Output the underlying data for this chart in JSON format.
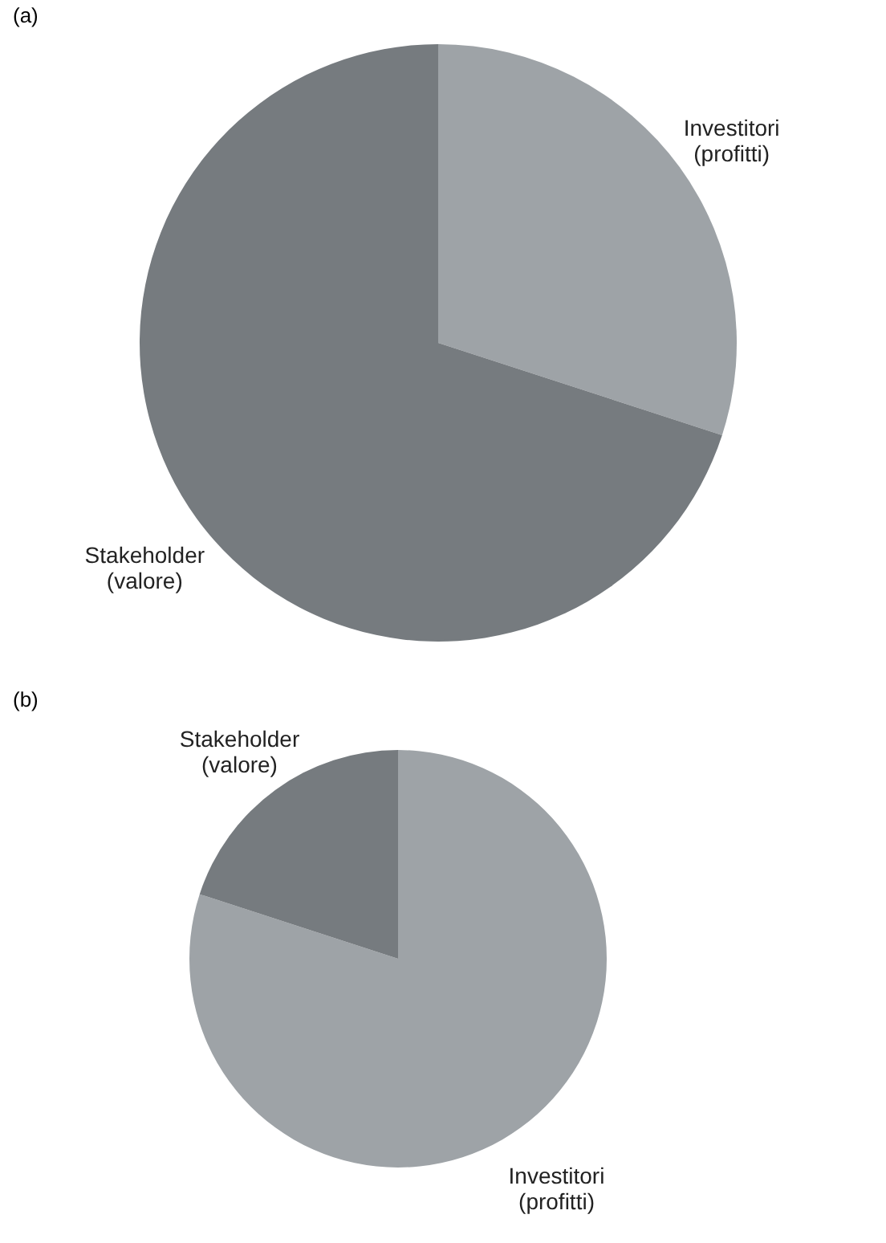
{
  "chart_data": [
    {
      "type": "pie",
      "title": "(a)",
      "categories": [
        "Investitori (profitti)",
        "Stakeholder (valore)"
      ],
      "values": [
        30,
        70
      ],
      "colors": [
        "#9ea3a7",
        "#767b7f"
      ]
    },
    {
      "type": "pie",
      "title": "(b)",
      "categories": [
        "Investitori (profitti)",
        "Stakeholder (valore)"
      ],
      "values": [
        80,
        20
      ],
      "colors": [
        "#9ea3a7",
        "#767b7f"
      ]
    }
  ]
}
